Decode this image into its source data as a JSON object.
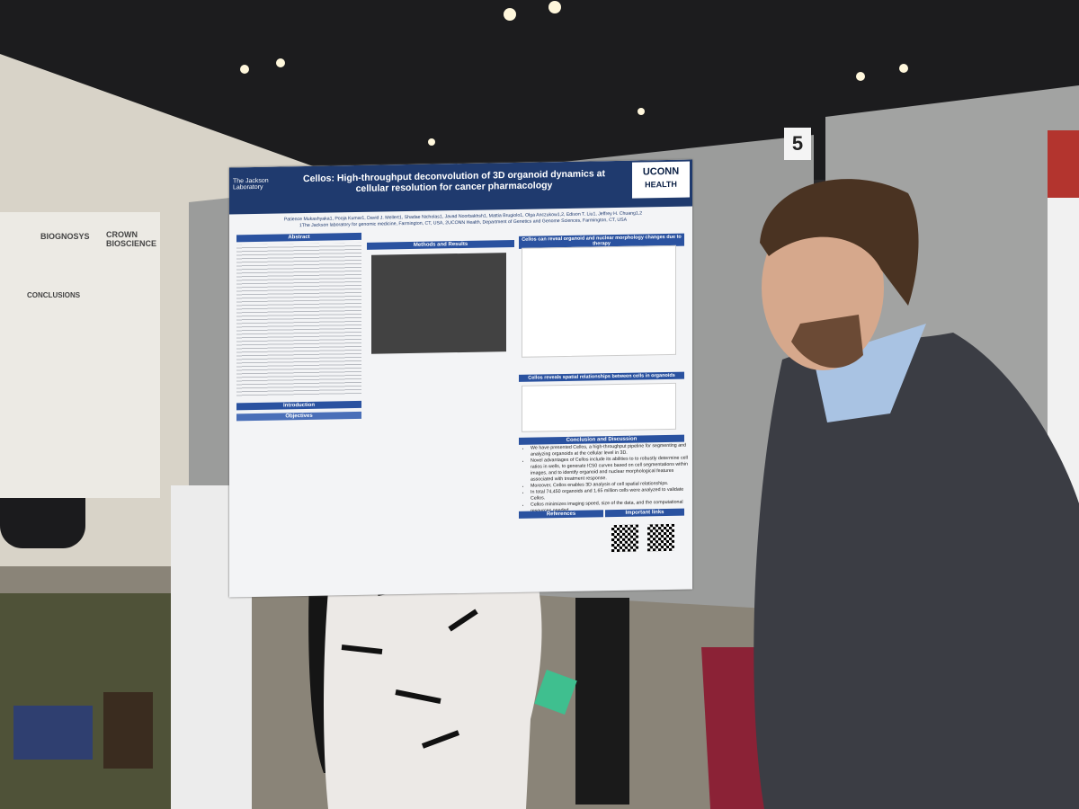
{
  "booth_number": "5",
  "poster": {
    "logo_left": "The Jackson Laboratory",
    "logo_right": [
      "UCONN",
      "HEALTH"
    ],
    "title": "Cellos: High-throughput deconvolution of 3D organoid dynamics at cellular resolution for cancer pharmacology",
    "authors": "Patience Mukashyaka1, Pooja Kumar1, David J. Mellert1, Shadae Nicholas1, Javad Noorbakhsh1, Mattia Brugiolo1, Olga Anczukow1,2, Edison T. Liu1, Jeffrey H. Chuang1,2",
    "affiliations": "1The Jackson laboratory for genomic medicine, Farmington, CT, USA, 2UCONN Health, Department of Genetics and Genome Sciences, Farmington, CT, USA",
    "sections": {
      "abstract": "Abstract",
      "methods": "Methods and Results",
      "introduction": "Introduction",
      "objectives": "Objectives",
      "morphology": "Cellos can reveal organoid and nuclear morphology changes due to therapy",
      "spatial": "Cellos reveals spatial relationships between cells in organoids",
      "conclusion": "Conclusion and Discussion",
      "references": "References",
      "links": "Important links"
    },
    "conclusion_points": [
      "We have presented Cellos, a high-throughput pipeline for segmenting and analyzing organoids at the cellular level in 3D.",
      "Novel advantages of Cellos include its abilities to to robustly determine cell ratios in wells, to generate IC50 curves based on cell segmentations within images, and to identify organoid and nuclear morphological features associated with treatment response.",
      "Moreover, Cellos enables 3D analysis of cell spatial relationships.",
      "In total 74,450 organoids and 1.65 million cells were analyzed to validate Cellos.",
      "Cellos minimizes imaging speed, size of the data, and the computational resources needed."
    ]
  },
  "left_poster": {
    "logos": [
      "BIOGNOSYS",
      "CROWN BIOSCIENCE"
    ],
    "heading": "CONCLUSIONS"
  }
}
